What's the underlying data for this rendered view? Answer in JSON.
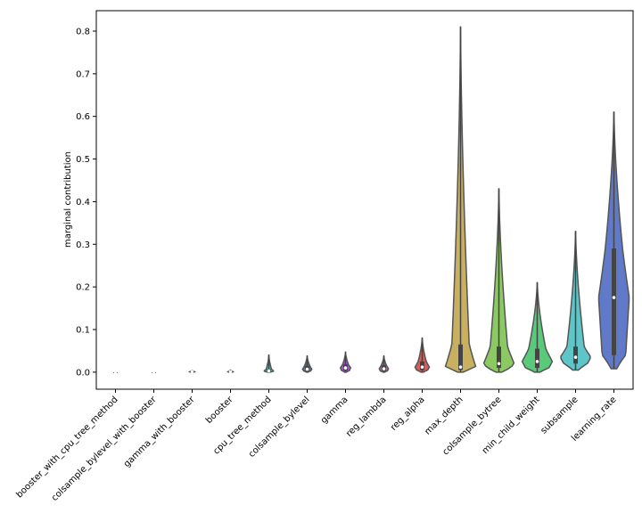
{
  "chart_data": {
    "type": "violin",
    "y_label": "marginal contribution",
    "categories": [
      "booster_with_cpu_tree_method",
      "colsample_bylevel_with_booster",
      "gamma_with_booster",
      "booster",
      "cpu_tree_method",
      "colsample_bylevel",
      "gamma",
      "reg_lambda",
      "reg_alpha",
      "max_depth",
      "colsample_bytree",
      "min_child_weight",
      "subsample",
      "learning_rate"
    ],
    "min": [
      0,
      0,
      0,
      0,
      0,
      0,
      0,
      0,
      0,
      0,
      0,
      0,
      0.005,
      0.008
    ],
    "q1": [
      0,
      0,
      0,
      0,
      0.001,
      0.003,
      0.004,
      0.003,
      0.005,
      0.005,
      0.01,
      0.01,
      0.02,
      0.04
    ],
    "median": [
      0,
      0,
      0.001,
      0.001,
      0.003,
      0.007,
      0.01,
      0.008,
      0.012,
      0.012,
      0.02,
      0.025,
      0.035,
      0.175
    ],
    "q3": [
      0,
      0,
      0.002,
      0.002,
      0.007,
      0.015,
      0.018,
      0.016,
      0.025,
      0.065,
      0.06,
      0.055,
      0.06,
      0.29
    ],
    "max": [
      0.001,
      0.001,
      0.004,
      0.005,
      0.04,
      0.038,
      0.047,
      0.038,
      0.08,
      0.81,
      0.43,
      0.21,
      0.33,
      0.61
    ],
    "colors": [
      "#d66a6a",
      "#d69a5a",
      "#c9c05a",
      "#9cc85a",
      "#5fb3a9",
      "#5a6fc4",
      "#a355c9",
      "#c74fbc",
      "#d0605e",
      "#c8b060",
      "#8cc864",
      "#59c97a",
      "#5ec5c8",
      "#6079c8"
    ],
    "ylim": [
      -0.04,
      0.848
    ],
    "yticks": [
      {
        "value": 0,
        "label": "0.0"
      },
      0.1,
      0.2,
      0.3,
      0.4,
      0.5,
      0.6,
      0.7,
      0.8
    ]
  }
}
